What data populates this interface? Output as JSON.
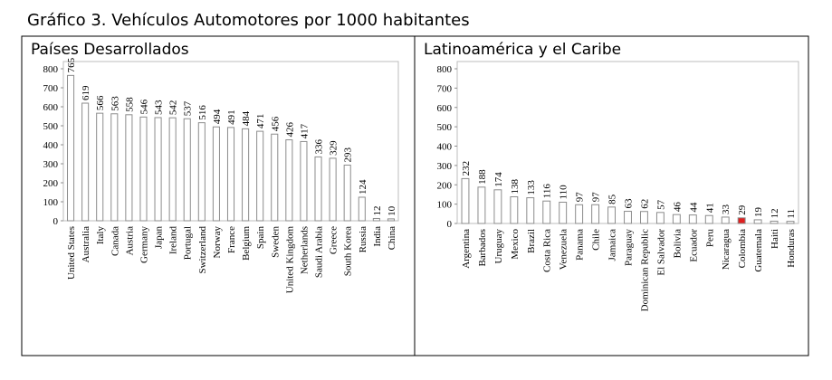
{
  "title": "Gráfico 3. Vehículos Automotores por 1000 habitantes",
  "chart_data": [
    {
      "type": "bar",
      "title": "Países Desarrollados",
      "categories": [
        "United States",
        "Australia",
        "Italy",
        "Canada",
        "Austria",
        "Germany",
        "Japan",
        "Ireland",
        "Portugal",
        "Switzerland",
        "Norway",
        "France",
        "Belgium",
        "Spain",
        "Sweden",
        "United Kingdom",
        "Netherlands",
        "Saudi Arabia",
        "Greece",
        "South Korea",
        "Russia",
        "India",
        "China"
      ],
      "values": [
        765,
        619,
        566,
        563,
        558,
        546,
        543,
        542,
        537,
        516,
        494,
        491,
        484,
        471,
        456,
        426,
        417,
        336,
        329,
        293,
        124,
        12,
        10
      ],
      "color": "#ffffff",
      "edge_color": "#8c8c8c",
      "ylim": [
        0,
        800
      ],
      "yticks": [
        0,
        100,
        200,
        300,
        400,
        500,
        600,
        700,
        800
      ],
      "grid": false
    },
    {
      "type": "bar",
      "title": "Latinoamérica y el Caribe",
      "categories": [
        "Argentina",
        "Barbados",
        "Uruguay",
        "Mexico",
        "Brazil",
        "Costa Rica",
        "Venezuela",
        "Panama",
        "Chile",
        "Jamaica",
        "Paraguay",
        "Dominican Republic",
        "El Salvador",
        "Bolivia",
        "Ecuador",
        "Peru",
        "Nicaragua",
        "Colombia",
        "Guatemala",
        "Haiti",
        "Honduras"
      ],
      "values": [
        232,
        188,
        174,
        138,
        133,
        116,
        110,
        97,
        97,
        85,
        63,
        62,
        57,
        46,
        44,
        41,
        33,
        29,
        19,
        12,
        11
      ],
      "colors": [
        "#ffffff",
        "#ffffff",
        "#ffffff",
        "#ffffff",
        "#ffffff",
        "#ffffff",
        "#ffffff",
        "#ffffff",
        "#ffffff",
        "#ffffff",
        "#ffffff",
        "#ffffff",
        "#ffffff",
        "#ffffff",
        "#ffffff",
        "#ffffff",
        "#ffffff",
        "#e02020",
        "#ffffff",
        "#ffffff",
        "#ffffff"
      ],
      "edge_color": "#8c8c8c",
      "ylim": [
        0,
        800
      ],
      "yticks": [
        0,
        100,
        200,
        300,
        400,
        500,
        600,
        700,
        800
      ],
      "grid": false
    }
  ]
}
